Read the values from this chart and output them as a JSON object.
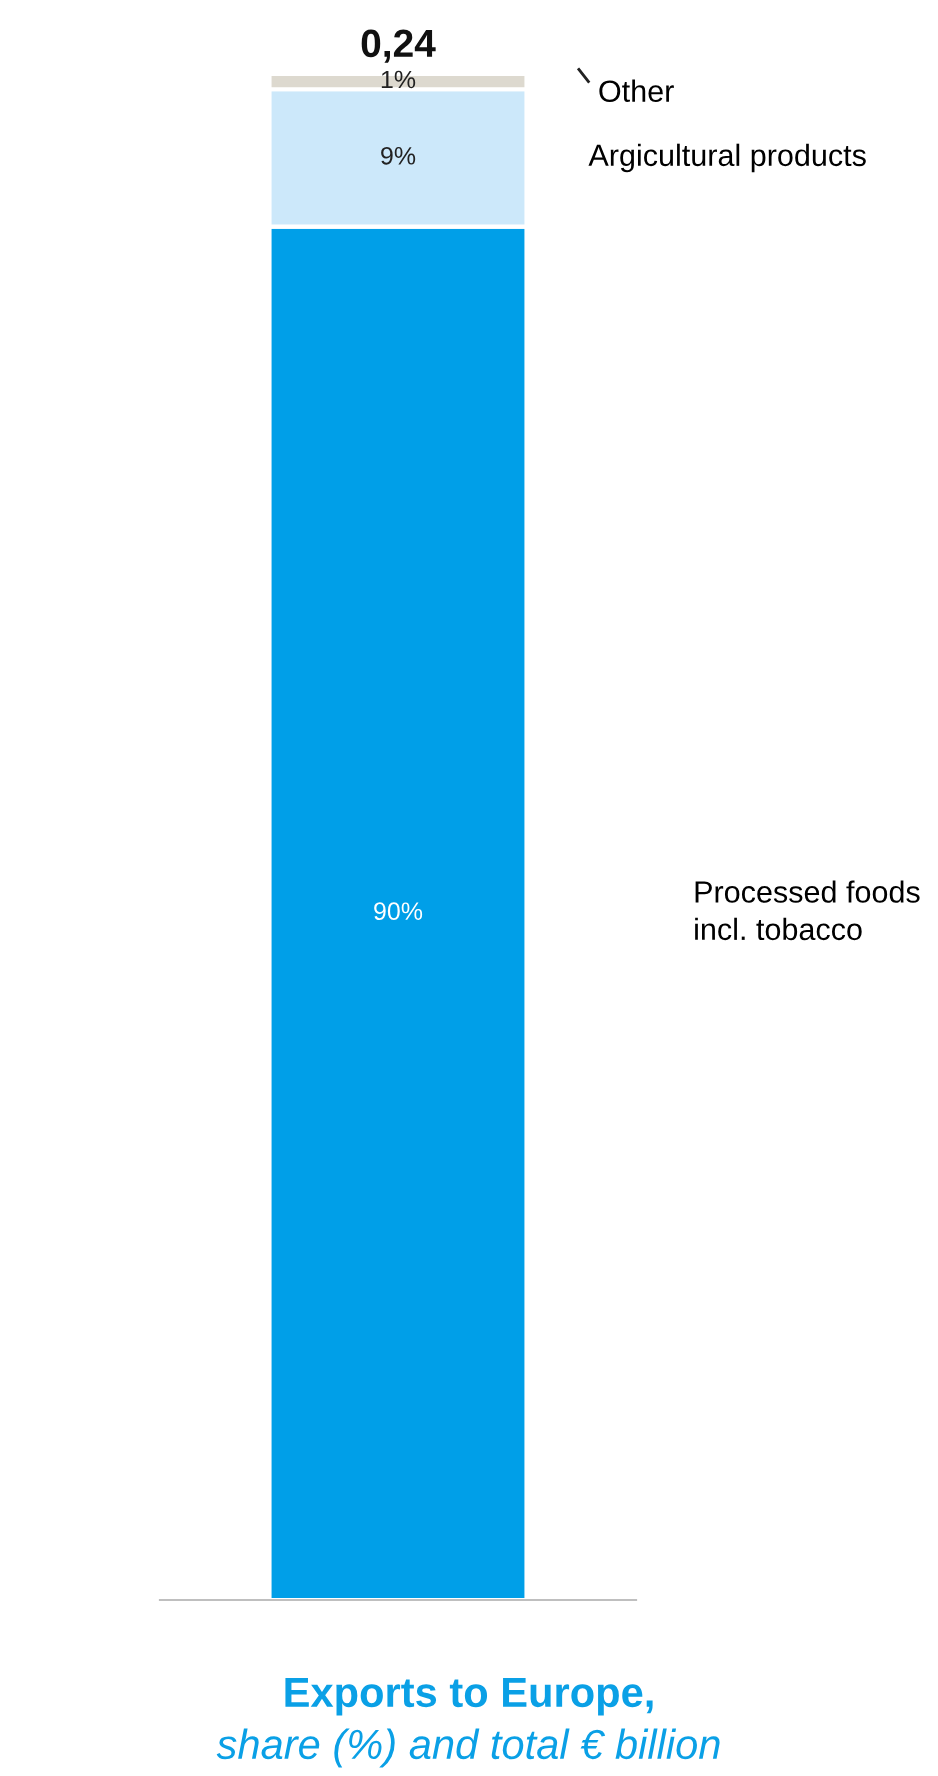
{
  "chart_data": {
    "type": "bar",
    "stacked": true,
    "title": "Exports to Europe,",
    "subtitle": "share (%) and total € billion",
    "categories": [
      null
    ],
    "series": [
      {
        "name": "Processed foods incl. tobacco",
        "color": "#009fe8",
        "values": [
          90
        ],
        "value_labels": [
          "90%"
        ]
      },
      {
        "name": "Argicultural products",
        "color": "#cce8fa",
        "values": [
          9
        ],
        "value_labels": [
          "9%"
        ]
      },
      {
        "name": "Other",
        "color": "#ddd9cf",
        "values": [
          1
        ],
        "value_labels": [
          "1%"
        ]
      }
    ],
    "annotations": [
      "0,24"
    ]
  }
}
